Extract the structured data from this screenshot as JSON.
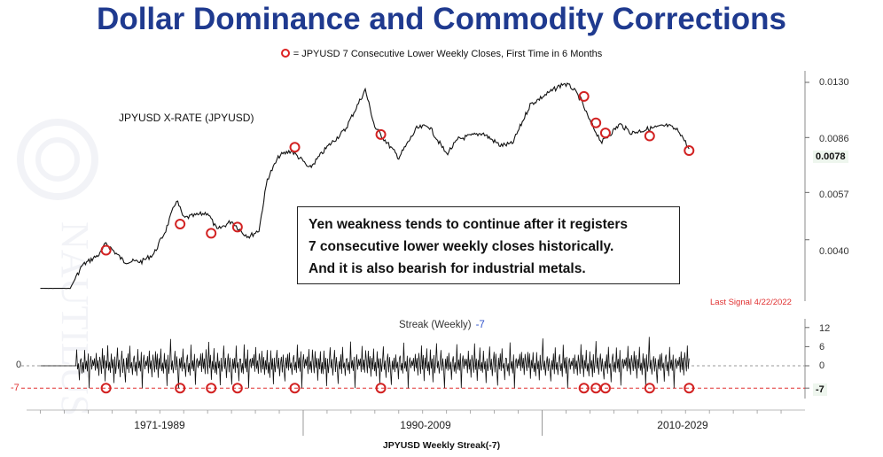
{
  "title": "Dollar Dominance and Commodity Corrections",
  "legend_text": "= JPYUSD 7 Consecutive Lower Weekly Closes, First Time in 6 Months",
  "series_label": "JPYUSD X-RATE (JPYUSD)",
  "annotation_lines": [
    "Yen weakness tends to continue after it registers",
    "7 consecutive lower weekly closes historically.",
    "And it is also bearish for industrial metals."
  ],
  "last_signal": "Last Signal 4/22/2022",
  "streak_label": "Streak (Weekly)",
  "streak_value": "-7",
  "footer": "JPYUSD Weekly Streak(-7)",
  "colors": {
    "title": "#1f3a8f",
    "signal": "#d22222",
    "price_line": "#111111",
    "threshold_line": "#e03030"
  },
  "chart_data": [
    {
      "type": "line",
      "title": "",
      "series": [
        {
          "name": "JPYUSD X-RATE (JPYUSD)",
          "points": [
            [
              1968.0,
              0.00278
            ],
            [
              1970.5,
              0.00278
            ],
            [
              1971.5,
              0.0033
            ],
            [
              1973.0,
              0.0036
            ],
            [
              1973.5,
              0.0039
            ],
            [
              1975.0,
              0.0034
            ],
            [
              1976.5,
              0.0034
            ],
            [
              1977.5,
              0.0036
            ],
            [
              1978.5,
              0.0043
            ],
            [
              1979.4,
              0.0054
            ],
            [
              1980.0,
              0.0047
            ],
            [
              1981.0,
              0.0048
            ],
            [
              1982.0,
              0.0049
            ],
            [
              1982.8,
              0.0043
            ],
            [
              1984.0,
              0.0046
            ],
            [
              1985.0,
              0.0042
            ],
            [
              1985.5,
              0.0041
            ],
            [
              1986.3,
              0.0043
            ],
            [
              1987.0,
              0.0063
            ],
            [
              1988.0,
              0.0075
            ],
            [
              1989.0,
              0.0078
            ],
            [
              1990.0,
              0.0072
            ],
            [
              1990.5,
              0.0068
            ],
            [
              1992.0,
              0.008
            ],
            [
              1993.5,
              0.0091
            ],
            [
              1995.2,
              0.0123
            ],
            [
              1996.0,
              0.0093
            ],
            [
              1998.0,
              0.0074
            ],
            [
              1999.5,
              0.0092
            ],
            [
              2000.5,
              0.0094
            ],
            [
              2002.0,
              0.0076
            ],
            [
              2003.0,
              0.0085
            ],
            [
              2005.0,
              0.0089
            ],
            [
              2006.5,
              0.0081
            ],
            [
              2007.5,
              0.0082
            ],
            [
              2009.0,
              0.011
            ],
            [
              2011.8,
              0.0129
            ],
            [
              2012.5,
              0.0125
            ],
            [
              2013.2,
              0.0115
            ],
            [
              2014.0,
              0.0097
            ],
            [
              2015.0,
              0.0083
            ],
            [
              2016.5,
              0.0095
            ],
            [
              2017.5,
              0.0089
            ],
            [
              2019.0,
              0.0092
            ],
            [
              2020.5,
              0.0094
            ],
            [
              2021.5,
              0.009
            ],
            [
              2022.3,
              0.0079
            ]
          ]
        }
      ],
      "signals": [
        {
          "x": 1973.5,
          "y": 0.0037
        },
        {
          "x": 1979.7,
          "y": 0.0045
        },
        {
          "x": 1982.3,
          "y": 0.0042
        },
        {
          "x": 1984.5,
          "y": 0.0044
        },
        {
          "x": 1989.3,
          "y": 0.008
        },
        {
          "x": 1996.5,
          "y": 0.0088
        },
        {
          "x": 2013.5,
          "y": 0.0117
        },
        {
          "x": 2014.5,
          "y": 0.0096
        },
        {
          "x": 2015.3,
          "y": 0.0089
        },
        {
          "x": 2019.0,
          "y": 0.0087
        },
        {
          "x": 2022.3,
          "y": 0.0078
        }
      ],
      "yscale": "log",
      "ylim": [
        0.0026,
        0.0135
      ],
      "yticks": [
        "0.0130",
        "0.0086",
        "0.0057",
        "0.0040"
      ],
      "ytick_values": [
        0.013,
        0.0086,
        0.0057,
        0.004
      ],
      "last_value": "0.0078",
      "grid": false
    },
    {
      "type": "line",
      "title": "Streak (Weekly)",
      "streak_sample_series": [
        0,
        3,
        -2,
        5,
        -1,
        2,
        -3,
        4,
        1,
        -2,
        6,
        -1,
        3,
        -4,
        2,
        -1,
        5,
        -2,
        1,
        -3,
        4,
        -1,
        2,
        -5,
        3,
        -2,
        1,
        7,
        -1,
        2,
        -3,
        1,
        4,
        -2,
        3,
        -1,
        -6,
        2,
        -1,
        3,
        -2,
        5,
        -1,
        1,
        -4,
        2,
        3,
        -2,
        1,
        -3,
        6,
        -1,
        2,
        -2,
        4,
        -7,
        1,
        3,
        -1,
        2
      ],
      "signals_x": [
        1973.5,
        1979.7,
        1982.3,
        1984.5,
        1989.3,
        1996.5,
        2013.5,
        2014.5,
        2015.3,
        2019.0,
        2022.3
      ],
      "threshold": -7,
      "yticks": [
        "12",
        "6",
        "0",
        "-7"
      ],
      "ytick_values": [
        12,
        6,
        0,
        -7
      ],
      "left_labels": [
        "0",
        "-7"
      ],
      "current_value": "-7",
      "x_ranges": [
        "1971-1989",
        "1990-2009",
        "2010-2029"
      ]
    }
  ]
}
